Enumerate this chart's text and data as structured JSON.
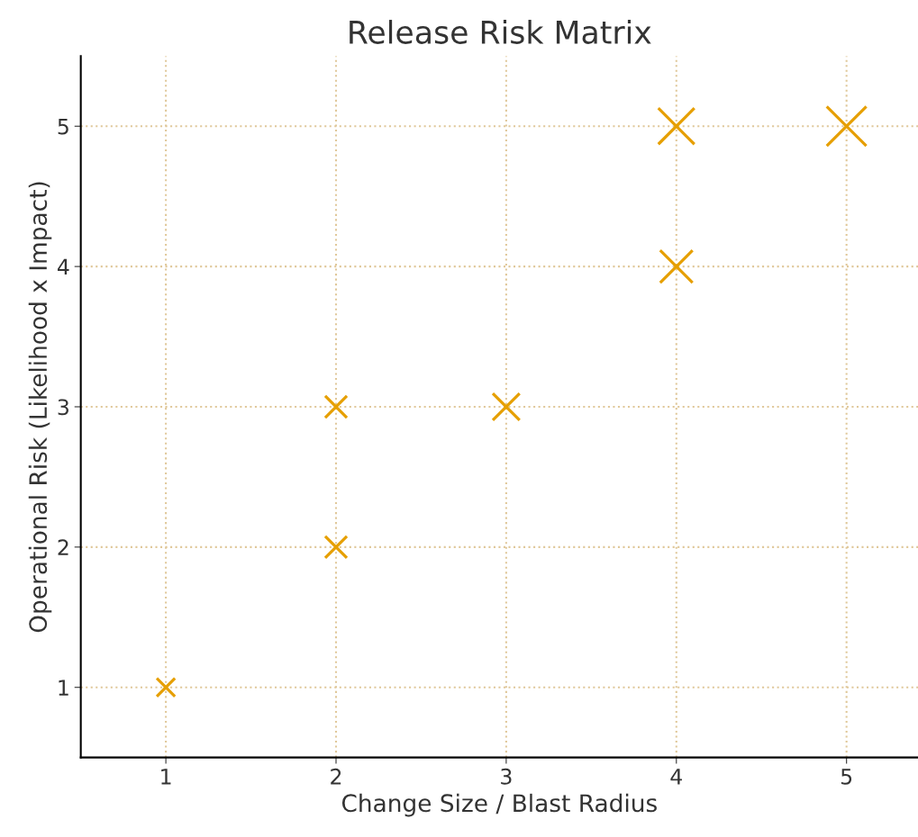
{
  "chart_data": {
    "type": "bubble",
    "title": "Release Risk Matrix",
    "xlabel": "Change Size / Blast Radius",
    "ylabel": "Operational Risk (Likelihood x Impact)",
    "x": [
      1,
      2,
      2,
      3,
      4,
      4,
      5
    ],
    "values": [
      1,
      2,
      3,
      3,
      4,
      5,
      5
    ],
    "sizes": [
      0.21,
      0.3,
      0.3,
      0.46,
      0.67,
      0.83,
      1
    ],
    "color": "#e69f00",
    "marker": "cross",
    "xlim": [
      0.5,
      5.42
    ],
    "ylim": [
      0.5,
      5.5
    ],
    "xticks": [
      1,
      2,
      3,
      4,
      5
    ],
    "yticks": [
      1,
      2,
      3,
      4,
      5
    ],
    "grid": true,
    "line_style": "dotted"
  }
}
